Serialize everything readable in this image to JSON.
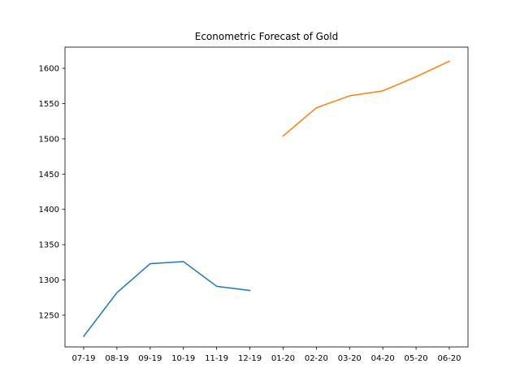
{
  "chart_data": {
    "type": "line",
    "title": "Econometric Forecast of Gold",
    "xlabel": "",
    "ylabel": "",
    "categories": [
      "07-19",
      "08-19",
      "09-19",
      "10-19",
      "11-19",
      "12-19",
      "01-20",
      "02-20",
      "03-20",
      "04-20",
      "05-20",
      "06-20"
    ],
    "yticks": [
      1250,
      1300,
      1350,
      1400,
      1450,
      1500,
      1550,
      1600
    ],
    "ylim": [
      1205,
      1630
    ],
    "grid": false,
    "series": [
      {
        "color": "#1f77b4",
        "x": [
          "07-19",
          "08-19",
          "09-19",
          "10-19",
          "11-19",
          "12-19"
        ],
        "values": [
          1220,
          1282,
          1323,
          1326,
          1291,
          1285
        ]
      },
      {
        "color": "#ff7f0e",
        "x": [
          "01-20",
          "02-20",
          "03-20",
          "04-20",
          "05-20",
          "06-20"
        ],
        "values": [
          1504,
          1544,
          1561,
          1568,
          1588,
          1610
        ]
      }
    ]
  }
}
